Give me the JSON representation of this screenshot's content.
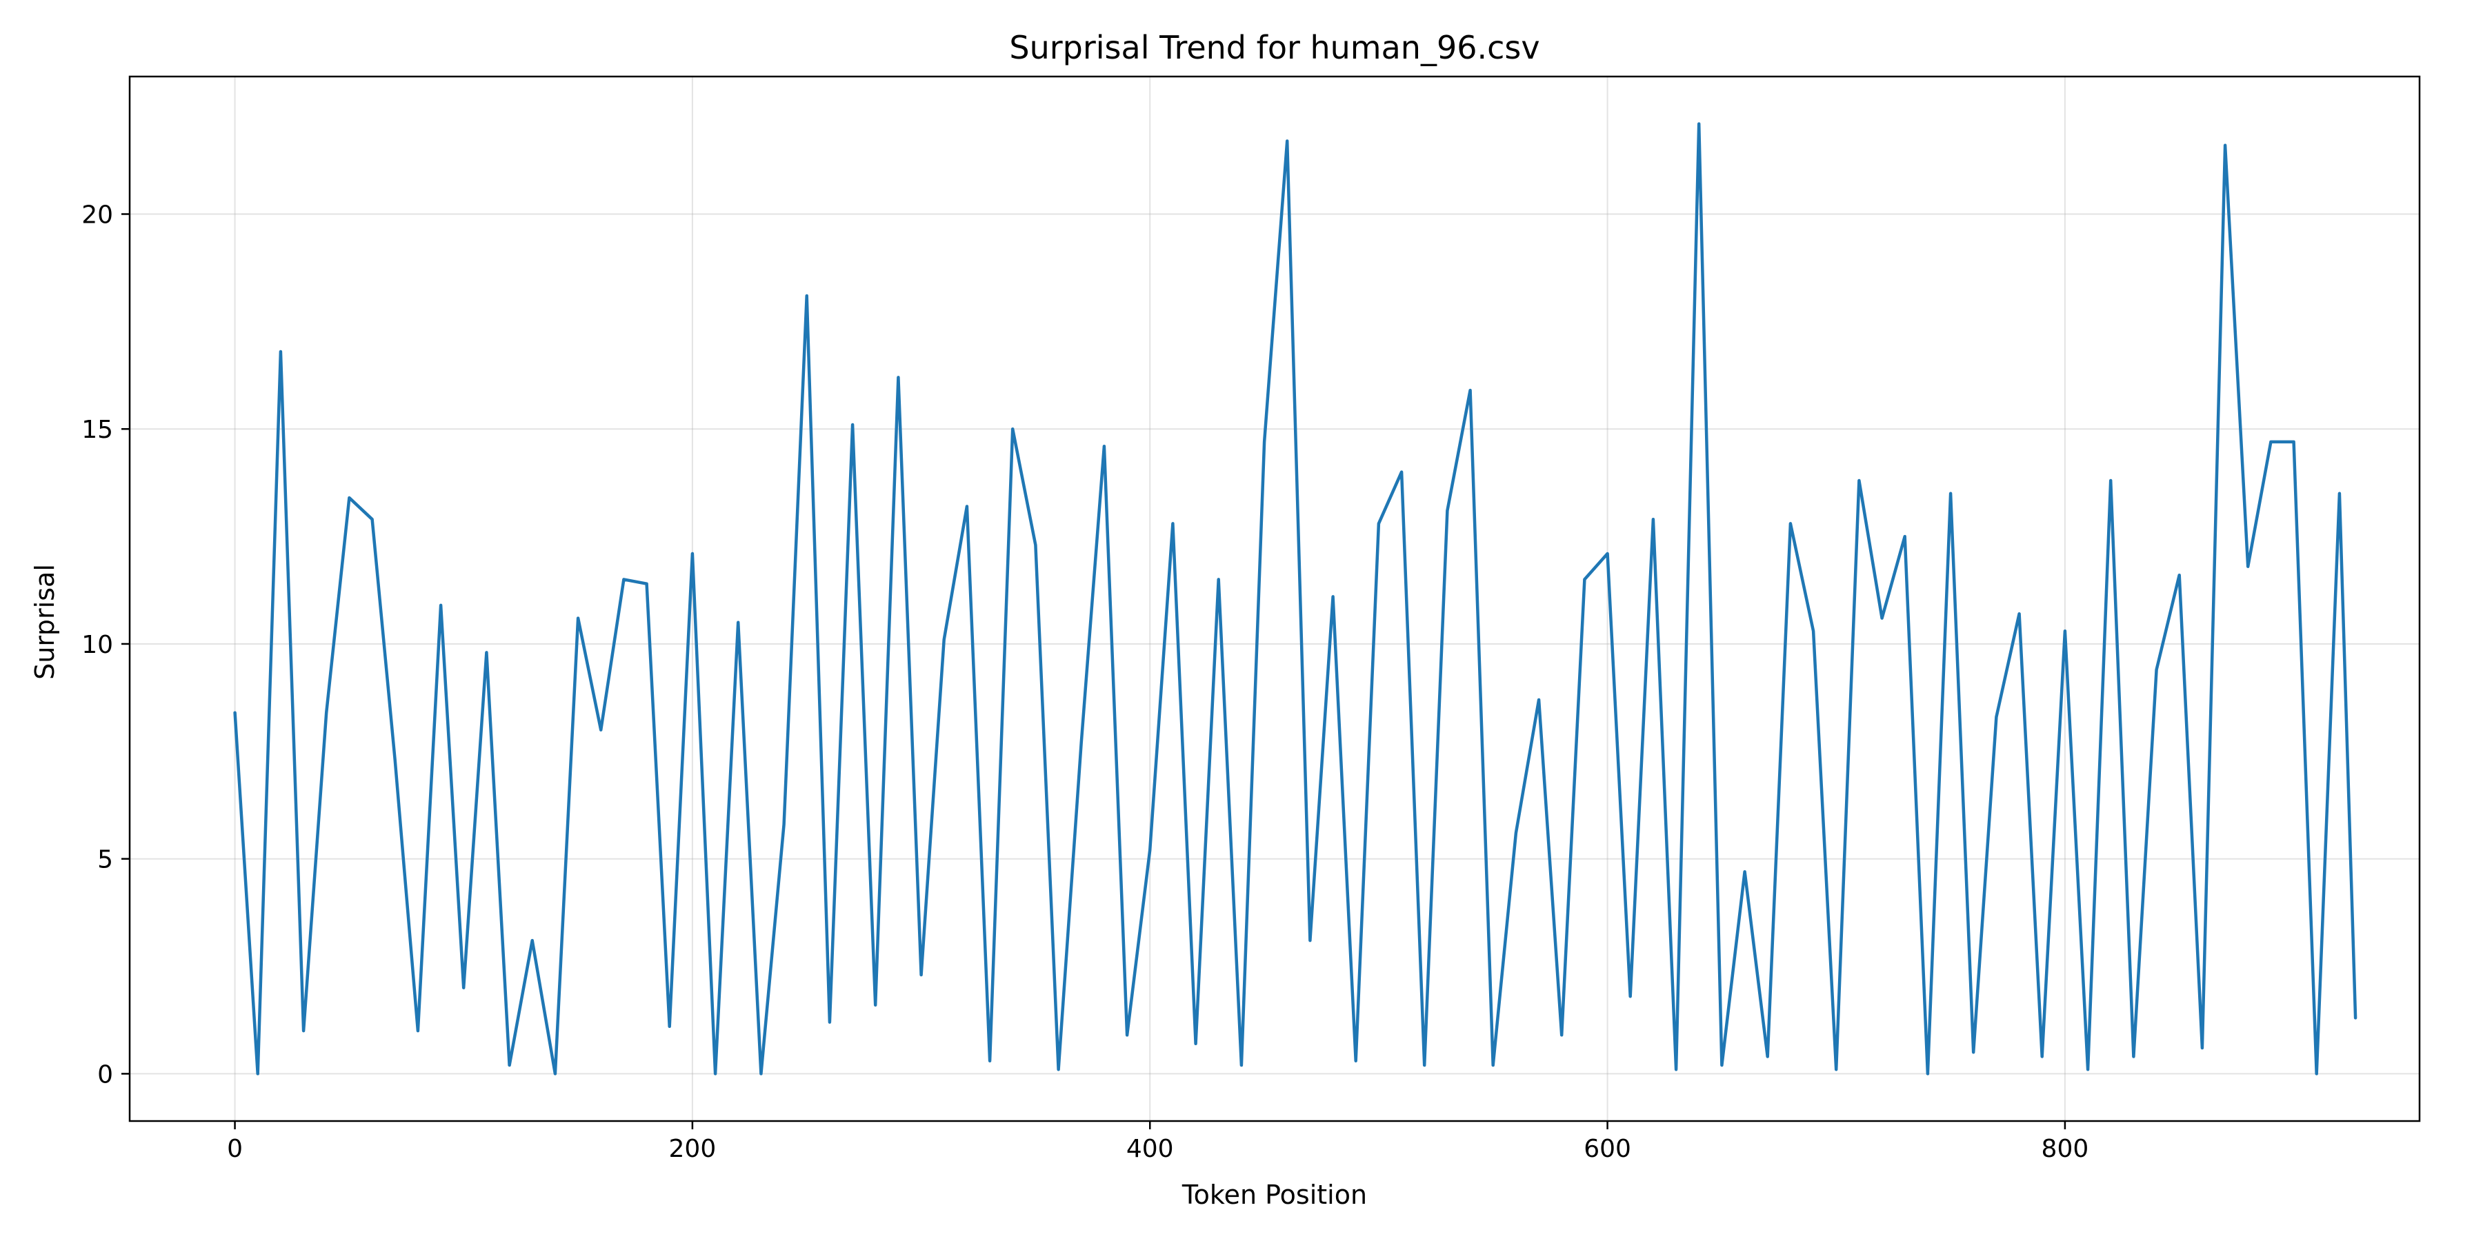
{
  "chart_data": {
    "type": "line",
    "title": "Surprisal Trend for human_96.csv",
    "xlabel": "Token Position",
    "ylabel": "Surprisal",
    "xlim": [
      -46,
      955
    ],
    "ylim": [
      -1.1,
      23.2
    ],
    "xticks": [
      0,
      200,
      400,
      600,
      800
    ],
    "yticks": [
      0,
      5,
      10,
      15,
      20
    ],
    "grid": true,
    "legend": "none",
    "series_color": "#1f77b4",
    "series": [
      {
        "x": [
          0,
          10,
          20,
          30,
          40,
          50,
          60,
          70,
          80,
          90,
          100,
          110,
          120,
          130,
          140,
          150,
          160,
          170,
          180,
          190,
          200,
          210,
          220,
          230,
          240,
          250,
          260,
          270,
          280,
          290,
          300,
          310,
          320,
          330,
          340,
          350,
          360,
          370,
          380,
          390,
          400,
          410,
          420,
          430,
          440,
          450,
          460,
          470,
          480,
          490,
          500,
          510,
          520,
          530,
          540,
          550,
          560,
          570,
          580,
          590,
          600,
          610,
          620,
          630,
          640,
          650,
          660,
          670,
          680,
          690,
          700,
          710,
          720,
          730,
          740,
          750,
          760,
          770,
          780,
          790,
          800,
          810,
          820,
          830,
          840,
          850,
          860,
          870,
          880,
          890,
          900,
          910,
          920,
          927
        ],
        "values": [
          8.4,
          0.0,
          16.8,
          1.0,
          8.4,
          13.4,
          12.9,
          7.3,
          1.0,
          10.9,
          2.0,
          9.8,
          0.2,
          3.1,
          0.0,
          10.6,
          8.0,
          11.5,
          11.4,
          1.1,
          12.1,
          0.0,
          10.5,
          0.0,
          5.8,
          18.1,
          1.2,
          15.1,
          1.6,
          16.2,
          2.3,
          10.1,
          13.2,
          0.3,
          15.0,
          12.3,
          0.1,
          7.7,
          14.6,
          0.9,
          5.2,
          12.8,
          0.7,
          11.5,
          0.2,
          14.7,
          21.7,
          3.1,
          11.1,
          0.3,
          12.8,
          14.0,
          0.2,
          13.1,
          15.9,
          0.2,
          5.6,
          8.7,
          0.9,
          11.5,
          12.1,
          1.8,
          12.9,
          0.1,
          22.1,
          0.2,
          4.7,
          0.4,
          12.8,
          10.3,
          0.1,
          13.8,
          10.6,
          12.5,
          0.0,
          13.5,
          0.5,
          8.3,
          10.7,
          0.4,
          10.3,
          0.1,
          13.8,
          0.4,
          9.4,
          11.6,
          0.6,
          21.6,
          11.8,
          14.7,
          14.7,
          0.0,
          13.5,
          1.3
        ]
      }
    ]
  }
}
